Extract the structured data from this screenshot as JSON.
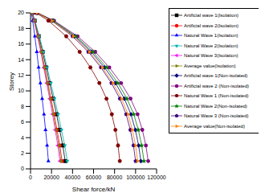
{
  "chart_data": {
    "type": "line",
    "x_label": "Shear force/kN",
    "y_label": "Storey",
    "xlim": [
      0,
      120000
    ],
    "xticks": [
      0,
      20000,
      40000,
      60000,
      80000,
      100000,
      120000
    ],
    "ylim": [
      0,
      20
    ],
    "yticks": [
      0,
      2,
      4,
      6,
      8,
      10,
      12,
      14,
      16,
      18,
      20
    ],
    "grid": false,
    "legend": "right",
    "series": [
      {
        "name": "Artificial wave 1(Isolation)",
        "color": "#000000",
        "marker": "square",
        "x": [
          33000,
          30700,
          27700,
          24800,
          21500,
          18200,
          14900,
          11600,
          7900,
          4000,
          1700
        ],
        "y": [
          1,
          3,
          5,
          7,
          9,
          11,
          13,
          15,
          17,
          19,
          20
        ]
      },
      {
        "name": "Artificial wave 2(Isolation)",
        "color": "#ff0000",
        "marker": "circle",
        "x": [
          30000,
          27900,
          25200,
          22500,
          19500,
          16500,
          13500,
          10500,
          7200,
          3600,
          1500
        ],
        "y": [
          1,
          3,
          5,
          7,
          9,
          11,
          13,
          15,
          17,
          19,
          20
        ]
      },
      {
        "name": "Natural Wave 1(Isolation)",
        "color": "#0000ff",
        "marker": "triangle",
        "x": [
          17000,
          15800,
          14300,
          12800,
          11100,
          9400,
          7700,
          6000,
          4100,
          2000,
          900
        ],
        "y": [
          1,
          3,
          5,
          7,
          9,
          11,
          13,
          15,
          17,
          19,
          20
        ]
      },
      {
        "name": "Natural Wave 2(Isolation)",
        "color": "#00b0b0",
        "marker": "triangle-down",
        "x": [
          35000,
          32600,
          29400,
          26300,
          22800,
          19300,
          15800,
          12300,
          8400,
          4200,
          1800
        ],
        "y": [
          1,
          3,
          5,
          7,
          9,
          11,
          13,
          15,
          17,
          19,
          20
        ]
      },
      {
        "name": "Natural Wave 3(Isolation)",
        "color": "#ff00ff",
        "marker": "triangle-left",
        "x": [
          28000,
          26000,
          23500,
          21000,
          18200,
          15400,
          12600,
          9800,
          6700,
          3400,
          1400
        ],
        "y": [
          1,
          3,
          5,
          7,
          9,
          11,
          13,
          15,
          17,
          19,
          20
        ]
      },
      {
        "name": "Average value(Isolation)",
        "color": "#808000",
        "marker": "triangle-right",
        "x": [
          29000,
          27000,
          24400,
          21800,
          18900,
          16000,
          13100,
          10200,
          7000,
          3500,
          1500
        ],
        "y": [
          1,
          3,
          5,
          7,
          9,
          11,
          13,
          15,
          17,
          19,
          20
        ]
      },
      {
        "name": "Artificial wave 1(Non-isolated)",
        "color": "#000080",
        "marker": "diamond",
        "x": [
          105000,
          102900,
          99800,
          95600,
          89300,
          80900,
          70400,
          57800,
          42000,
          21000,
          6300
        ],
        "y": [
          1,
          3,
          5,
          7,
          9,
          11,
          13,
          15,
          17,
          19,
          20
        ]
      },
      {
        "name": "Artificial wave 2 (Non-isolated)",
        "color": "#800080",
        "marker": "circle",
        "x": [
          112000,
          109800,
          106400,
          101900,
          95200,
          86200,
          75000,
          61600,
          44800,
          22400,
          6700
        ],
        "y": [
          1,
          3,
          5,
          7,
          9,
          11,
          13,
          15,
          17,
          19,
          20
        ]
      },
      {
        "name": "Natural Wave 1 (Non-isolated)",
        "color": "#800000",
        "marker": "hexagon",
        "x": [
          85000,
          83300,
          80800,
          77400,
          72300,
          65500,
          57000,
          46800,
          34000,
          17000,
          5100
        ],
        "y": [
          1,
          3,
          5,
          7,
          9,
          11,
          13,
          15,
          17,
          19,
          20
        ]
      },
      {
        "name": "Natural Wave 2(Non-isolated)",
        "color": "#008000",
        "marker": "star",
        "x": [
          108000,
          105800,
          102600,
          98300,
          91800,
          83200,
          72400,
          59400,
          43200,
          21600,
          6500
        ],
        "y": [
          1,
          3,
          5,
          7,
          9,
          11,
          13,
          15,
          17,
          19,
          20
        ]
      },
      {
        "name": "Natural Wave 3 (Non-isolated)",
        "color": "#400080",
        "marker": "pentagon",
        "x": [
          100000,
          98000,
          95000,
          91000,
          85000,
          77000,
          67000,
          55000,
          40000,
          20000,
          6000
        ],
        "y": [
          1,
          3,
          5,
          7,
          9,
          11,
          13,
          15,
          17,
          19,
          20
        ]
      },
      {
        "name": "Average value(Non-isolated)",
        "color": "#ff8000",
        "marker": "triangle-right",
        "x": [
          102000,
          100000,
          96900,
          92800,
          86700,
          78500,
          68300,
          56100,
          40800,
          20400,
          6100
        ],
        "y": [
          1,
          3,
          5,
          7,
          9,
          11,
          13,
          15,
          17,
          19,
          20
        ]
      }
    ]
  }
}
